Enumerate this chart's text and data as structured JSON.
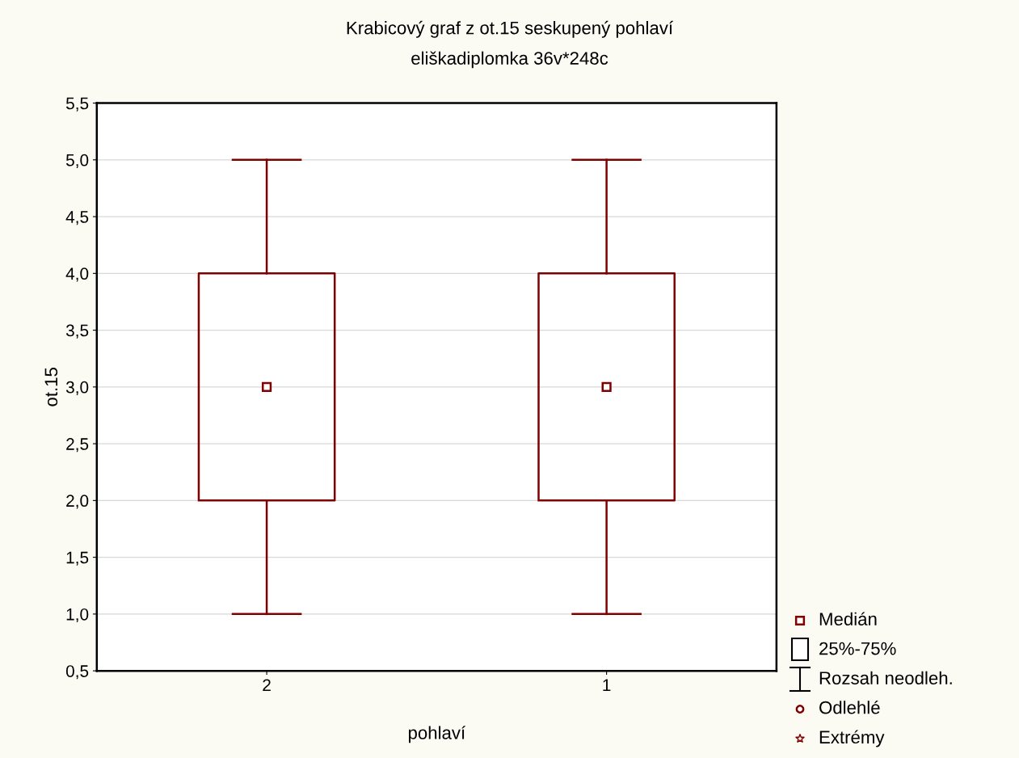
{
  "chart_data": {
    "type": "box",
    "title": "Krabicový graf z ot.15 seskupený pohlaví",
    "subtitle": "eliškadiplomka 36v*248c",
    "xlabel": "pohlaví",
    "ylabel": "ot.15",
    "categories": [
      "2",
      "1"
    ],
    "series": [
      {
        "color": "#800000",
        "boxes": [
          {
            "low": 1,
            "q1": 2,
            "median": 3,
            "q3": 4,
            "high": 5
          },
          {
            "low": 1,
            "q1": 2,
            "median": 3,
            "q3": 4,
            "high": 5
          }
        ]
      }
    ],
    "ylim": [
      0.5,
      5.5
    ],
    "yticks": [
      {
        "value": 0.5,
        "label": "0,5"
      },
      {
        "value": 1,
        "label": "1,0"
      },
      {
        "value": 1.5,
        "label": "1,5"
      },
      {
        "value": 2,
        "label": "2,0"
      },
      {
        "value": 2.5,
        "label": "2,5"
      },
      {
        "value": 3,
        "label": "3,0"
      },
      {
        "value": 3.5,
        "label": "3,5"
      },
      {
        "value": 4,
        "label": "4,0"
      },
      {
        "value": 4.5,
        "label": "4,5"
      },
      {
        "value": 5,
        "label": "5,0"
      },
      {
        "value": 5.5,
        "label": "5,5"
      }
    ],
    "grid": "y",
    "marker": "square",
    "annotations": [
      "Medián",
      "25%-75%",
      "Rozsah neodleh.",
      "Odlehlé",
      "Extrémy"
    ]
  }
}
